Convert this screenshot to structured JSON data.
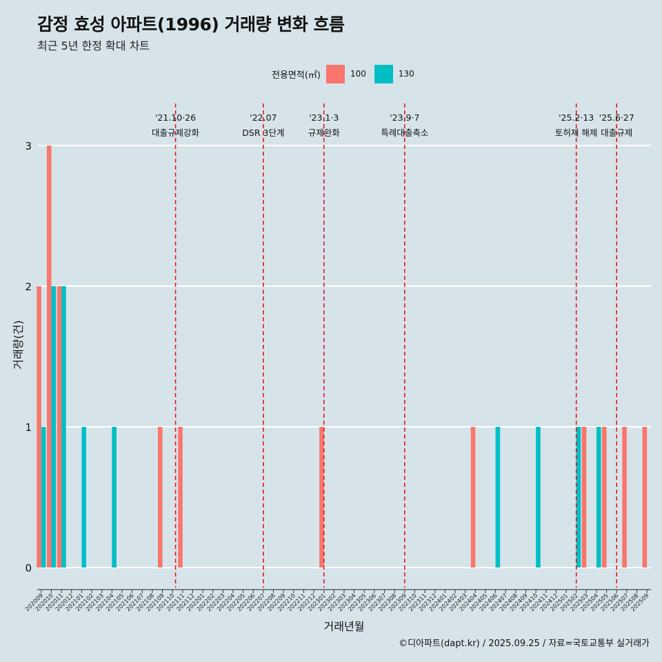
{
  "header": {
    "title": "감정 효성 아파트(1996) 거래량 변화 흐름",
    "subtitle": "최근 5년 한정 확대 차트"
  },
  "legend": {
    "title": "전용면적(㎡)",
    "items": [
      {
        "label": "100",
        "color": "#F8766D"
      },
      {
        "label": "130",
        "color": "#00BFC4"
      }
    ]
  },
  "caption": "©디아파트(dapt.kr) / 2025.09.25 / 자료=국토교통부 실거래가",
  "chart_data": {
    "type": "bar",
    "xlabel": "거래년월",
    "ylabel": "거래량(건)",
    "ylim": [
      0,
      3
    ],
    "yticks": [
      0,
      1,
      2,
      3
    ],
    "categories": [
      "202009",
      "202010",
      "202011",
      "202012",
      "202101",
      "202102",
      "202103",
      "202104",
      "202105",
      "202106",
      "202107",
      "202108",
      "202109",
      "202110",
      "202111",
      "202112",
      "202201",
      "202202",
      "202203",
      "202204",
      "202205",
      "202206",
      "202207",
      "202208",
      "202209",
      "202210",
      "202211",
      "202212",
      "202301",
      "202302",
      "202303",
      "202304",
      "202305",
      "202306",
      "202307",
      "202308",
      "202309",
      "202310",
      "202311",
      "202312",
      "202401",
      "202402",
      "202403",
      "202404",
      "202405",
      "202406",
      "202407",
      "202408",
      "202409",
      "202410",
      "202411",
      "202412",
      "202501",
      "202502",
      "202503",
      "202504",
      "202505",
      "202506",
      "202507",
      "202508",
      "202509"
    ],
    "series": [
      {
        "name": "100",
        "color": "#F8766D",
        "values": {
          "202009": 2,
          "202010": 3,
          "202011": 2,
          "202109": 1,
          "202111": 1,
          "202301": 1,
          "202404": 1,
          "202503": 1,
          "202505": 1,
          "202507": 1,
          "202509": 1
        }
      },
      {
        "name": "130",
        "color": "#00BFC4",
        "values": {
          "202009": 1,
          "202010": 2,
          "202011": 2,
          "202101": 1,
          "202104": 1,
          "202406": 1,
          "202410": 1,
          "202502": 1,
          "202504": 1
        }
      }
    ],
    "annotations": [
      {
        "x": "202110",
        "date": "'21.10·26",
        "label": "대출규제강화",
        "offset": 0.3
      },
      {
        "x": "202207",
        "date": "'22.07",
        "label": "DSR 3단계",
        "offset": 0.0
      },
      {
        "x": "202301",
        "date": "'23.1·3",
        "label": "규제완화",
        "offset": 0.0
      },
      {
        "x": "202309",
        "date": "'23.9·7",
        "label": "특례대출축소",
        "offset": 0.0
      },
      {
        "x": "202502",
        "date": "'25.2·13",
        "label": "토허제 해제",
        "offset": 0.0
      },
      {
        "x": "202506",
        "date": "'25.6·27",
        "label": "대출규제",
        "offset": 0.0
      }
    ]
  }
}
